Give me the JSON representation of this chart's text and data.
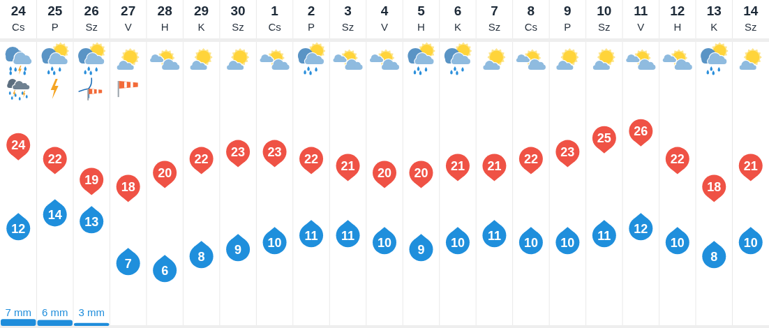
{
  "chart_data": {
    "type": "scatter",
    "categories": [
      "24\nCs",
      "25\nP",
      "26\nSz",
      "27\nV",
      "28\nH",
      "29\nK",
      "30\nSz",
      "1\nCs",
      "2\nP",
      "3\nSz",
      "4\nV",
      "5\nH",
      "6\nK",
      "7\nSz",
      "8\nCs",
      "9\nP",
      "10\nSz",
      "11\nV",
      "12\nH",
      "13\nK",
      "14\nSz"
    ],
    "series": [
      {
        "color": "#ef5245",
        "values": [
          24,
          22,
          19,
          18,
          20,
          22,
          23,
          23,
          22,
          21,
          20,
          20,
          21,
          21,
          22,
          23,
          25,
          26,
          22,
          18,
          21
        ]
      },
      {
        "color": "#1f8fdc",
        "values": [
          12,
          14,
          13,
          7,
          6,
          8,
          9,
          10,
          11,
          11,
          10,
          9,
          10,
          11,
          10,
          10,
          11,
          12,
          10,
          8,
          10
        ]
      },
      {
        "type": "bar",
        "axis": "y2",
        "color": "#1f8ddb",
        "values": [
          7,
          6,
          3,
          null,
          null,
          null,
          null,
          null,
          null,
          null,
          null,
          null,
          null,
          null,
          null,
          null,
          null,
          null,
          null,
          null,
          null
        ],
        "value_labels": [
          "7 mm",
          "6 mm",
          "3 mm",
          null,
          null,
          null,
          null,
          null,
          null,
          null,
          null,
          null,
          null,
          null,
          null,
          null,
          null,
          null,
          null,
          null,
          null
        ]
      }
    ],
    "ylim": [
      -2,
      39
    ],
    "y2lim": [
      0,
      290
    ],
    "marker": "circle",
    "data_labels": true,
    "grid": "x",
    "tick_labels": "x"
  }
}
